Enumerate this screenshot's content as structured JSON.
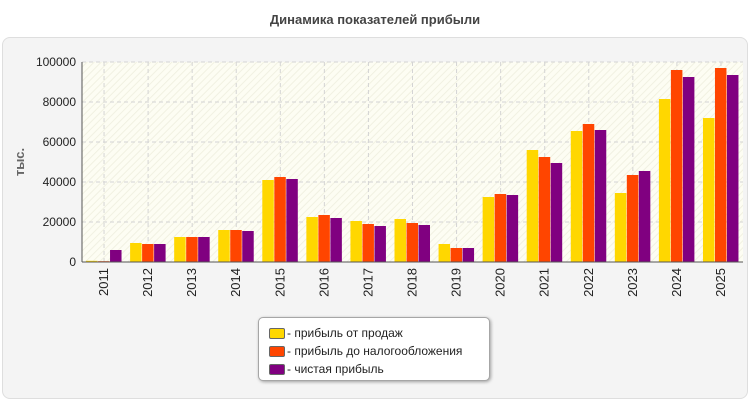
{
  "chart_data": {
    "type": "bar",
    "title": "Динамика показателей прибыли",
    "ylabel": "тыс.",
    "xlabel": "",
    "ylim": [
      0,
      100000
    ],
    "yticks": [
      0,
      20000,
      40000,
      60000,
      80000,
      100000
    ],
    "grid": true,
    "legend_position": "bottom",
    "categories": [
      "2011",
      "2012",
      "2013",
      "2014",
      "2015",
      "2016",
      "2017",
      "2018",
      "2019",
      "2020",
      "2021",
      "2022",
      "2023",
      "2024",
      "2025"
    ],
    "series": [
      {
        "name": "- прибыль от продаж",
        "color": "#ffd700",
        "values": [
          600,
          9500,
          12500,
          16000,
          41000,
          22500,
          20500,
          21500,
          9000,
          32500,
          56000,
          65500,
          34500,
          81500,
          72000
        ]
      },
      {
        "name": "- прибыль до налогообложения",
        "color": "#ff4500",
        "values": [
          400,
          9000,
          12500,
          16000,
          42500,
          23500,
          19000,
          19500,
          7000,
          34000,
          52500,
          69000,
          43500,
          96000,
          97000
        ]
      },
      {
        "name": "- чистая прибыль",
        "color": "#800080",
        "values": [
          6000,
          9000,
          12500,
          15500,
          41500,
          22000,
          18000,
          18500,
          7000,
          33500,
          49500,
          66000,
          45500,
          92500,
          93500
        ]
      }
    ]
  }
}
